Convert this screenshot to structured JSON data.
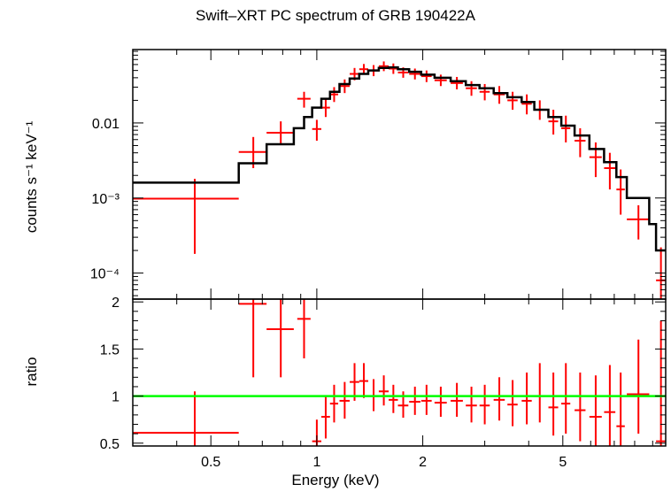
{
  "chart_data": [
    {
      "type": "scatter",
      "panel": "spectrum",
      "title": "Swift–XRT PC spectrum of GRB 190422A",
      "xlabel": "Energy (keV)",
      "ylabel": "counts s⁻¹ keV⁻¹",
      "xscale": "log",
      "yscale": "log",
      "xlim": [
        0.3,
        9.8
      ],
      "ylim": [
        4.5e-05,
        0.095
      ],
      "ytick_labels": [
        "0.01",
        "10⁻³",
        "10⁻⁴"
      ],
      "colors": {
        "data": "#ff0000",
        "model": "#000000"
      },
      "series": [
        {
          "style": "errorbar",
          "points": [
            {
              "x": 0.45,
              "xlo": 0.3,
              "xhi": 0.6,
              "y": 0.00098,
              "ylo": 0.00018,
              "yhi": 0.0018
            },
            {
              "x": 0.66,
              "xlo": 0.6,
              "xhi": 0.72,
              "y": 0.0041,
              "ylo": 0.0025,
              "yhi": 0.0065
            },
            {
              "x": 0.79,
              "xlo": 0.72,
              "xhi": 0.86,
              "y": 0.0074,
              "ylo": 0.0052,
              "yhi": 0.0105
            },
            {
              "x": 0.92,
              "xlo": 0.88,
              "xhi": 0.96,
              "y": 0.021,
              "ylo": 0.016,
              "yhi": 0.026
            },
            {
              "x": 1.0,
              "xlo": 0.97,
              "xhi": 1.03,
              "y": 0.0083,
              "ylo": 0.0058,
              "yhi": 0.011
            },
            {
              "x": 1.06,
              "xlo": 1.03,
              "xhi": 1.09,
              "y": 0.016,
              "ylo": 0.012,
              "yhi": 0.021
            },
            {
              "x": 1.12,
              "xlo": 1.09,
              "xhi": 1.15,
              "y": 0.024,
              "ylo": 0.019,
              "yhi": 0.03
            },
            {
              "x": 1.2,
              "xlo": 1.16,
              "xhi": 1.24,
              "y": 0.031,
              "ylo": 0.025,
              "yhi": 0.038
            },
            {
              "x": 1.28,
              "xlo": 1.24,
              "xhi": 1.32,
              "y": 0.045,
              "ylo": 0.037,
              "yhi": 0.054
            },
            {
              "x": 1.36,
              "xlo": 1.32,
              "xhi": 1.4,
              "y": 0.052,
              "ylo": 0.044,
              "yhi": 0.061
            },
            {
              "x": 1.45,
              "xlo": 1.4,
              "xhi": 1.5,
              "y": 0.05,
              "ylo": 0.042,
              "yhi": 0.059
            },
            {
              "x": 1.55,
              "xlo": 1.5,
              "xhi": 1.6,
              "y": 0.057,
              "ylo": 0.049,
              "yhi": 0.066
            },
            {
              "x": 1.65,
              "xlo": 1.6,
              "xhi": 1.7,
              "y": 0.053,
              "ylo": 0.045,
              "yhi": 0.062
            },
            {
              "x": 1.76,
              "xlo": 1.7,
              "xhi": 1.82,
              "y": 0.047,
              "ylo": 0.04,
              "yhi": 0.055
            },
            {
              "x": 1.9,
              "xlo": 1.83,
              "xhi": 1.97,
              "y": 0.045,
              "ylo": 0.038,
              "yhi": 0.053
            },
            {
              "x": 2.05,
              "xlo": 1.98,
              "xhi": 2.12,
              "y": 0.042,
              "ylo": 0.035,
              "yhi": 0.05
            },
            {
              "x": 2.25,
              "xlo": 2.16,
              "xhi": 2.34,
              "y": 0.037,
              "ylo": 0.031,
              "yhi": 0.044
            },
            {
              "x": 2.5,
              "xlo": 2.4,
              "xhi": 2.6,
              "y": 0.034,
              "ylo": 0.028,
              "yhi": 0.041
            },
            {
              "x": 2.75,
              "xlo": 2.65,
              "xhi": 2.85,
              "y": 0.029,
              "ylo": 0.023,
              "yhi": 0.036
            },
            {
              "x": 3.0,
              "xlo": 2.9,
              "xhi": 3.1,
              "y": 0.026,
              "ylo": 0.02,
              "yhi": 0.033
            },
            {
              "x": 3.3,
              "xlo": 3.18,
              "xhi": 3.42,
              "y": 0.024,
              "ylo": 0.018,
              "yhi": 0.031
            },
            {
              "x": 3.6,
              "xlo": 3.48,
              "xhi": 3.72,
              "y": 0.02,
              "ylo": 0.015,
              "yhi": 0.026
            },
            {
              "x": 3.95,
              "xlo": 3.82,
              "xhi": 4.08,
              "y": 0.018,
              "ylo": 0.013,
              "yhi": 0.024
            },
            {
              "x": 4.3,
              "xlo": 4.15,
              "xhi": 4.45,
              "y": 0.015,
              "ylo": 0.011,
              "yhi": 0.02
            },
            {
              "x": 4.7,
              "xlo": 4.55,
              "xhi": 4.85,
              "y": 0.0105,
              "ylo": 0.007,
              "yhi": 0.015
            },
            {
              "x": 5.1,
              "xlo": 4.95,
              "xhi": 5.25,
              "y": 0.0085,
              "ylo": 0.0055,
              "yhi": 0.0125
            },
            {
              "x": 5.6,
              "xlo": 5.4,
              "xhi": 5.8,
              "y": 0.0058,
              "ylo": 0.0035,
              "yhi": 0.0085
            },
            {
              "x": 6.2,
              "xlo": 5.95,
              "xhi": 6.45,
              "y": 0.0035,
              "ylo": 0.0019,
              "yhi": 0.0055
            },
            {
              "x": 6.8,
              "xlo": 6.55,
              "xhi": 7.05,
              "y": 0.0025,
              "ylo": 0.0013,
              "yhi": 0.004
            },
            {
              "x": 7.3,
              "xlo": 7.1,
              "xhi": 7.5,
              "y": 0.0013,
              "ylo": 0.0006,
              "yhi": 0.0024
            },
            {
              "x": 8.2,
              "xlo": 7.6,
              "xhi": 8.8,
              "y": 0.00052,
              "ylo": 0.00028,
              "yhi": 0.0008
            },
            {
              "x": 9.5,
              "xlo": 9.2,
              "xhi": 9.8,
              "y": 8e-05,
              "ylo": 4.5e-05,
              "yhi": 0.00022
            }
          ]
        },
        {
          "style": "step",
          "bins": [
            {
              "x0": 0.3,
              "x1": 0.6,
              "y": 0.0016
            },
            {
              "x0": 0.6,
              "x1": 0.72,
              "y": 0.0029
            },
            {
              "x0": 0.72,
              "x1": 0.86,
              "y": 0.0052
            },
            {
              "x0": 0.86,
              "x1": 0.92,
              "y": 0.0085
            },
            {
              "x0": 0.92,
              "x1": 0.97,
              "y": 0.012
            },
            {
              "x0": 0.97,
              "x1": 1.03,
              "y": 0.016
            },
            {
              "x0": 1.03,
              "x1": 1.09,
              "y": 0.021
            },
            {
              "x0": 1.09,
              "x1": 1.16,
              "y": 0.026
            },
            {
              "x0": 1.16,
              "x1": 1.24,
              "y": 0.033
            },
            {
              "x0": 1.24,
              "x1": 1.32,
              "y": 0.039
            },
            {
              "x0": 1.32,
              "x1": 1.4,
              "y": 0.045
            },
            {
              "x0": 1.4,
              "x1": 1.5,
              "y": 0.05
            },
            {
              "x0": 1.5,
              "x1": 1.6,
              "y": 0.054
            },
            {
              "x0": 1.6,
              "x1": 1.7,
              "y": 0.055
            },
            {
              "x0": 1.7,
              "x1": 1.83,
              "y": 0.052
            },
            {
              "x0": 1.83,
              "x1": 1.98,
              "y": 0.048
            },
            {
              "x0": 1.98,
              "x1": 2.16,
              "y": 0.044
            },
            {
              "x0": 2.16,
              "x1": 2.4,
              "y": 0.04
            },
            {
              "x0": 2.4,
              "x1": 2.65,
              "y": 0.036
            },
            {
              "x0": 2.65,
              "x1": 2.9,
              "y": 0.032
            },
            {
              "x0": 2.9,
              "x1": 3.18,
              "y": 0.029
            },
            {
              "x0": 3.18,
              "x1": 3.48,
              "y": 0.025
            },
            {
              "x0": 3.48,
              "x1": 3.82,
              "y": 0.022
            },
            {
              "x0": 3.82,
              "x1": 4.15,
              "y": 0.019
            },
            {
              "x0": 4.15,
              "x1": 4.55,
              "y": 0.015
            },
            {
              "x0": 4.55,
              "x1": 4.95,
              "y": 0.012
            },
            {
              "x0": 4.95,
              "x1": 5.4,
              "y": 0.0092
            },
            {
              "x0": 5.4,
              "x1": 5.95,
              "y": 0.0068
            },
            {
              "x0": 5.95,
              "x1": 6.55,
              "y": 0.0045
            },
            {
              "x0": 6.55,
              "x1": 7.1,
              "y": 0.003
            },
            {
              "x0": 7.1,
              "x1": 7.6,
              "y": 0.0019
            },
            {
              "x0": 7.6,
              "x1": 8.8,
              "y": 0.001
            },
            {
              "x0": 8.8,
              "x1": 9.2,
              "y": 0.00045
            },
            {
              "x0": 9.2,
              "x1": 9.8,
              "y": 0.0002
            }
          ]
        }
      ]
    },
    {
      "type": "scatter",
      "panel": "ratio",
      "xlabel": "Energy (keV)",
      "ylabel": "ratio",
      "xscale": "log",
      "xlim": [
        0.3,
        9.8
      ],
      "ylim": [
        0.47,
        2.03
      ],
      "xtick_labels": [
        "0.5",
        "1",
        "2",
        "5"
      ],
      "ytick_labels": [
        "0.5",
        "1",
        "1.5",
        "2"
      ],
      "reference_line": {
        "y": 1,
        "color": "#00ff00"
      },
      "series": [
        {
          "style": "errorbar",
          "points": [
            {
              "x": 0.45,
              "xlo": 0.3,
              "xhi": 0.6,
              "y": 0.61,
              "ylo": 0.47,
              "yhi": 1.05
            },
            {
              "x": 0.66,
              "xlo": 0.6,
              "xhi": 0.72,
              "y": 1.98,
              "ylo": 1.2,
              "yhi": 2.03
            },
            {
              "x": 0.79,
              "xlo": 0.72,
              "xhi": 0.86,
              "y": 1.71,
              "ylo": 1.2,
              "yhi": 2.03
            },
            {
              "x": 0.92,
              "xlo": 0.88,
              "xhi": 0.96,
              "y": 1.82,
              "ylo": 1.4,
              "yhi": 2.03
            },
            {
              "x": 1.0,
              "xlo": 0.97,
              "xhi": 1.03,
              "y": 0.52,
              "ylo": 0.47,
              "yhi": 0.75
            },
            {
              "x": 1.06,
              "xlo": 1.03,
              "xhi": 1.09,
              "y": 0.78,
              "ylo": 0.55,
              "yhi": 1.0
            },
            {
              "x": 1.12,
              "xlo": 1.09,
              "xhi": 1.15,
              "y": 0.92,
              "ylo": 0.72,
              "yhi": 1.12
            },
            {
              "x": 1.2,
              "xlo": 1.16,
              "xhi": 1.24,
              "y": 0.95,
              "ylo": 0.76,
              "yhi": 1.15
            },
            {
              "x": 1.28,
              "xlo": 1.24,
              "xhi": 1.32,
              "y": 1.15,
              "ylo": 0.95,
              "yhi": 1.35
            },
            {
              "x": 1.36,
              "xlo": 1.32,
              "xhi": 1.4,
              "y": 1.16,
              "ylo": 0.98,
              "yhi": 1.35
            },
            {
              "x": 1.45,
              "xlo": 1.4,
              "xhi": 1.5,
              "y": 1.0,
              "ylo": 0.84,
              "yhi": 1.18
            },
            {
              "x": 1.55,
              "xlo": 1.5,
              "xhi": 1.6,
              "y": 1.05,
              "ylo": 0.9,
              "yhi": 1.22
            },
            {
              "x": 1.65,
              "xlo": 1.6,
              "xhi": 1.7,
              "y": 0.96,
              "ylo": 0.82,
              "yhi": 1.12
            },
            {
              "x": 1.76,
              "xlo": 1.7,
              "xhi": 1.82,
              "y": 0.9,
              "ylo": 0.77,
              "yhi": 1.05
            },
            {
              "x": 1.9,
              "xlo": 1.83,
              "xhi": 1.97,
              "y": 0.94,
              "ylo": 0.8,
              "yhi": 1.1
            },
            {
              "x": 2.05,
              "xlo": 1.98,
              "xhi": 2.12,
              "y": 0.95,
              "ylo": 0.8,
              "yhi": 1.12
            },
            {
              "x": 2.25,
              "xlo": 2.16,
              "xhi": 2.34,
              "y": 0.93,
              "ylo": 0.78,
              "yhi": 1.1
            },
            {
              "x": 2.5,
              "xlo": 2.4,
              "xhi": 2.6,
              "y": 0.95,
              "ylo": 0.78,
              "yhi": 1.14
            },
            {
              "x": 2.75,
              "xlo": 2.65,
              "xhi": 2.85,
              "y": 0.9,
              "ylo": 0.72,
              "yhi": 1.1
            },
            {
              "x": 3.0,
              "xlo": 2.9,
              "xhi": 3.1,
              "y": 0.9,
              "ylo": 0.7,
              "yhi": 1.12
            },
            {
              "x": 3.3,
              "xlo": 3.18,
              "xhi": 3.42,
              "y": 0.96,
              "ylo": 0.74,
              "yhi": 1.2
            },
            {
              "x": 3.6,
              "xlo": 3.48,
              "xhi": 3.72,
              "y": 0.91,
              "ylo": 0.68,
              "yhi": 1.17
            },
            {
              "x": 3.95,
              "xlo": 3.82,
              "xhi": 4.08,
              "y": 0.95,
              "ylo": 0.7,
              "yhi": 1.25
            },
            {
              "x": 4.3,
              "xlo": 4.15,
              "xhi": 4.45,
              "y": 1.0,
              "ylo": 0.72,
              "yhi": 1.35
            },
            {
              "x": 4.7,
              "xlo": 4.55,
              "xhi": 4.85,
              "y": 0.88,
              "ylo": 0.58,
              "yhi": 1.25
            },
            {
              "x": 5.1,
              "xlo": 4.95,
              "xhi": 5.25,
              "y": 0.92,
              "ylo": 0.6,
              "yhi": 1.35
            },
            {
              "x": 5.6,
              "xlo": 5.4,
              "xhi": 5.8,
              "y": 0.85,
              "ylo": 0.52,
              "yhi": 1.25
            },
            {
              "x": 6.2,
              "xlo": 5.95,
              "xhi": 6.45,
              "y": 0.78,
              "ylo": 0.47,
              "yhi": 1.22
            },
            {
              "x": 6.8,
              "xlo": 6.55,
              "xhi": 7.05,
              "y": 0.83,
              "ylo": 0.47,
              "yhi": 1.33
            },
            {
              "x": 7.3,
              "xlo": 7.1,
              "xhi": 7.5,
              "y": 0.68,
              "ylo": 0.47,
              "yhi": 1.25
            },
            {
              "x": 8.2,
              "xlo": 7.6,
              "xhi": 8.8,
              "y": 1.02,
              "ylo": 0.6,
              "yhi": 1.6
            },
            {
              "x": 9.5,
              "xlo": 9.2,
              "xhi": 9.8,
              "y": 0.52,
              "ylo": 0.47,
              "yhi": 1.8
            }
          ]
        }
      ]
    }
  ]
}
